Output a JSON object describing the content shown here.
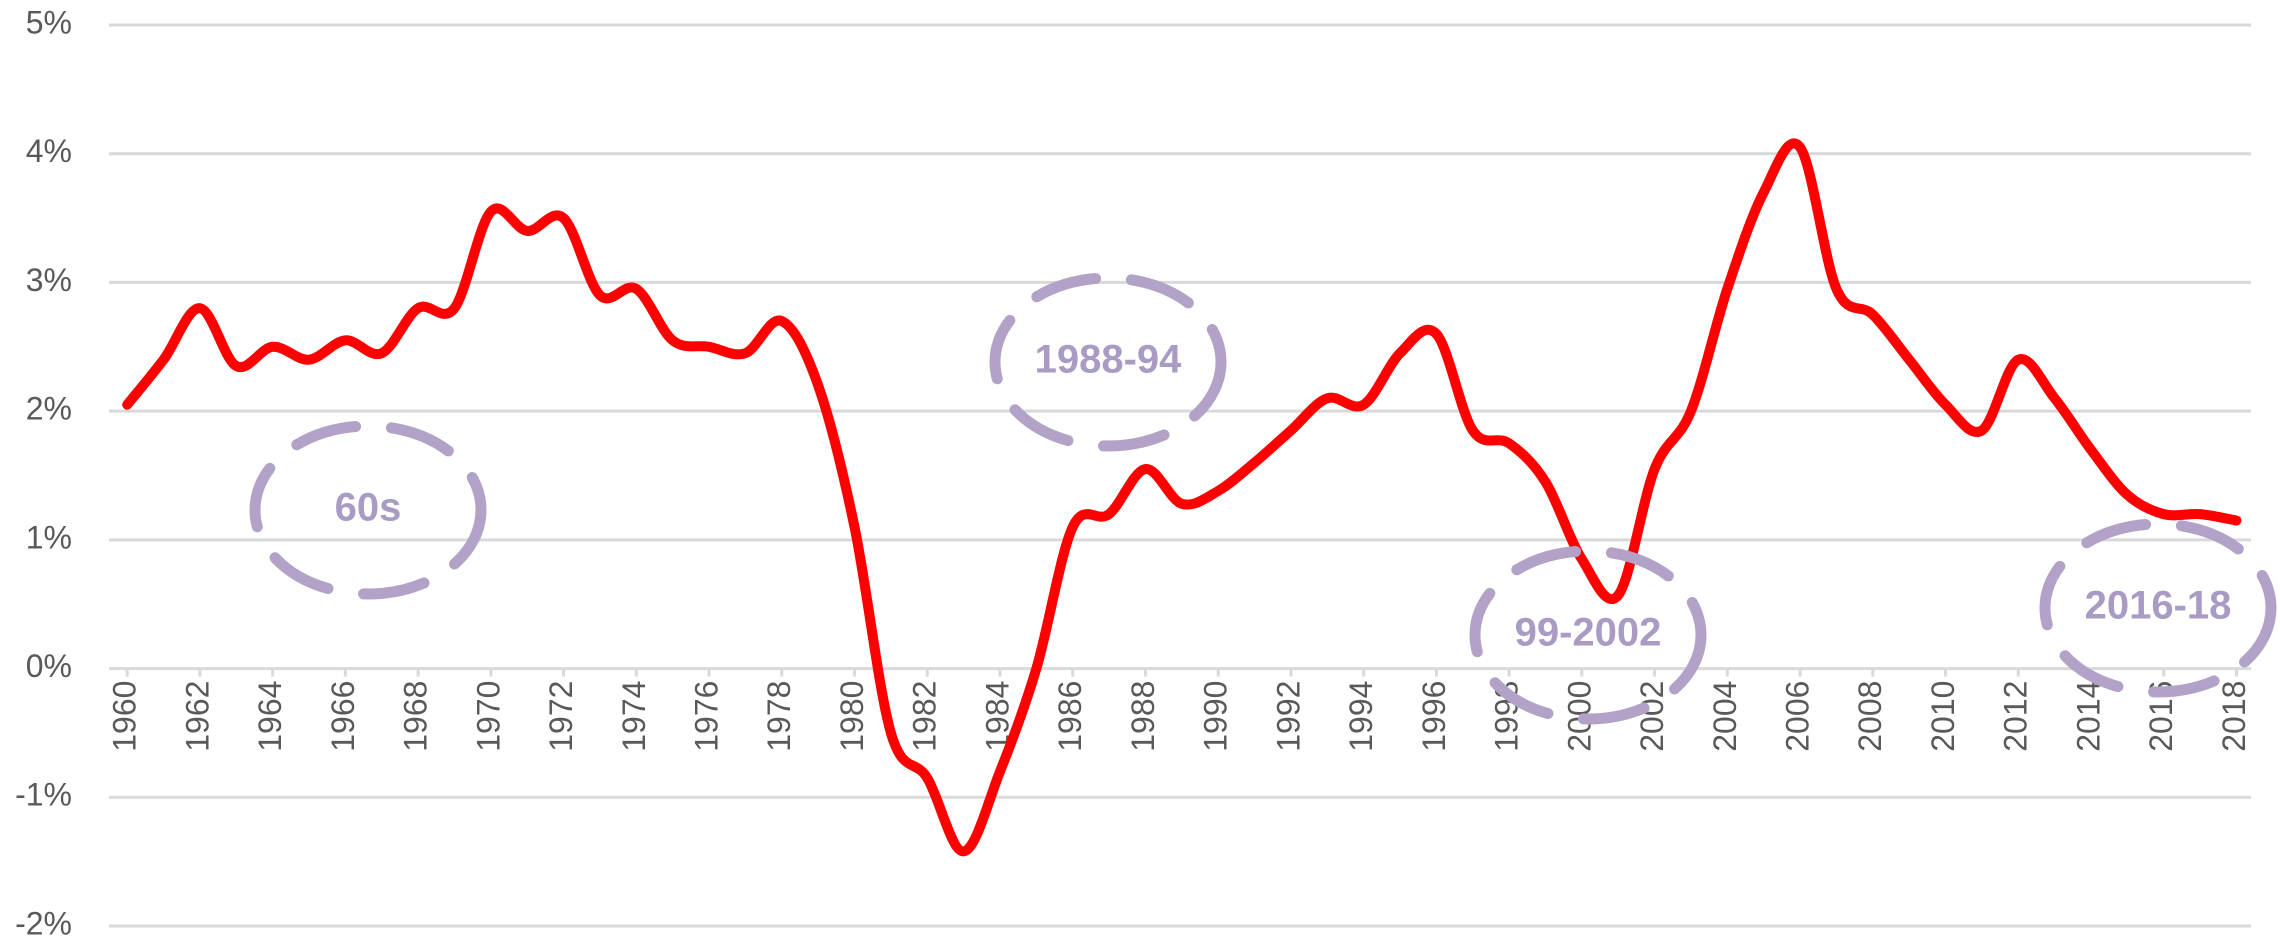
{
  "chart_data": {
    "type": "line",
    "x": [
      1960,
      1961,
      1962,
      1963,
      1964,
      1965,
      1966,
      1967,
      1968,
      1969,
      1970,
      1971,
      1972,
      1973,
      1974,
      1975,
      1976,
      1977,
      1978,
      1979,
      1980,
      1981,
      1982,
      1983,
      1984,
      1985,
      1986,
      1987,
      1988,
      1989,
      1990,
      1991,
      1992,
      1993,
      1994,
      1995,
      1996,
      1997,
      1998,
      1999,
      2000,
      2001,
      2002,
      2003,
      2004,
      2005,
      2006,
      2007,
      2008,
      2009,
      2010,
      2011,
      2012,
      2013,
      2014,
      2015,
      2016,
      2017,
      2018
    ],
    "series": [
      {
        "color": "#ff0000",
        "values": [
          2.05,
          2.4,
          2.8,
          2.35,
          2.5,
          2.4,
          2.55,
          2.45,
          2.8,
          2.8,
          3.55,
          3.4,
          3.5,
          2.9,
          2.95,
          2.55,
          2.5,
          2.45,
          2.7,
          2.2,
          1.1,
          -0.5,
          -0.85,
          -1.42,
          -0.8,
          0,
          1.1,
          1.2,
          1.55,
          1.28,
          1.38,
          1.6,
          1.85,
          2.1,
          2.05,
          2.45,
          2.6,
          1.85,
          1.75,
          1.45,
          0.85,
          0.57,
          1.55,
          2.0,
          2.95,
          3.7,
          4.05,
          2.95,
          2.75,
          2.4,
          2.05,
          1.85,
          2.4,
          2.1,
          1.7,
          1.35,
          1.2,
          1.2,
          1.15
        ]
      }
    ],
    "xlim": [
      1959.5,
      2018.4
    ],
    "xticks": [
      1960,
      1962,
      1964,
      1966,
      1968,
      1970,
      1972,
      1974,
      1976,
      1978,
      1980,
      1982,
      1984,
      1986,
      1988,
      1990,
      1992,
      1994,
      1996,
      1998,
      2000,
      2002,
      2004,
      2006,
      2008,
      2010,
      2012,
      2014,
      2016,
      2018
    ],
    "ylim": [
      -2,
      5
    ],
    "yticks": [
      {
        "value": -2,
        "label": "-2%"
      },
      {
        "value": -1,
        "label": "-1%"
      },
      {
        "value": 0,
        "label": "0%"
      },
      {
        "value": 1,
        "label": "1%"
      },
      {
        "value": 2,
        "label": "2%"
      },
      {
        "value": 3,
        "label": "3%"
      },
      {
        "value": 4,
        "label": "4%"
      },
      {
        "value": 5,
        "label": "5%"
      }
    ],
    "grid": true,
    "annotations": [
      "60s",
      "1988-94",
      "99-2002",
      "2016-18"
    ]
  }
}
